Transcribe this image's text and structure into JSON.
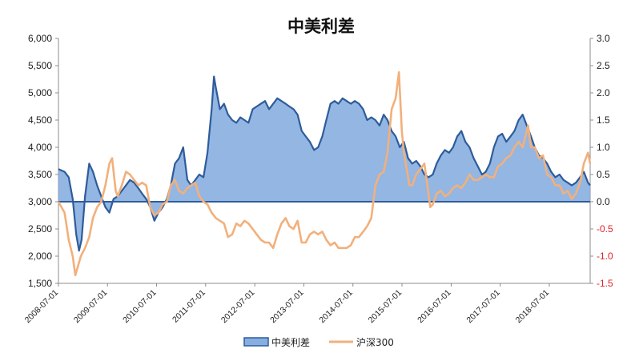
{
  "chart_data": {
    "type": "area",
    "title": "中美利差",
    "x_start": "2008-07-01",
    "x_end": "2019-05-01",
    "x_tick_labels": [
      "2008-07-01",
      "2009-07-01",
      "2010-07-01",
      "2011-07-01",
      "2012-07-01",
      "2013-07-01",
      "2014-07-01",
      "2015-07-01",
      "2016-07-01",
      "2017-07-01",
      "2018-07-01"
    ],
    "y_left": {
      "min": 1500,
      "max": 6000,
      "step": 500,
      "tick_labels": [
        "1,500",
        "2,000",
        "2,500",
        "3,000",
        "3,500",
        "4,000",
        "4,500",
        "5,000",
        "5,500",
        "6,000"
      ]
    },
    "y_right": {
      "min": -1.5,
      "max": 3.0,
      "step": 0.5,
      "tick_labels": [
        "-1.5",
        "-1.0",
        "-0.5",
        "0.0",
        "0.5",
        "1.0",
        "1.5",
        "2.0",
        "2.5",
        "3.0"
      ]
    },
    "legend_position": "bottom",
    "series": [
      {
        "name": "中美利差",
        "axis": "right",
        "kind": "area",
        "color": "#2e5c9a",
        "fill": "#87aee0",
        "points": [
          [
            "2008-07-01",
            0.6
          ],
          [
            "2008-08-15",
            0.55
          ],
          [
            "2008-09-15",
            0.45
          ],
          [
            "2008-10-15",
            0.05
          ],
          [
            "2008-11-10",
            -0.6
          ],
          [
            "2008-12-01",
            -0.9
          ],
          [
            "2008-12-20",
            -0.7
          ],
          [
            "2009-01-15",
            0.1
          ],
          [
            "2009-02-15",
            0.7
          ],
          [
            "2009-03-15",
            0.55
          ],
          [
            "2009-04-15",
            0.3
          ],
          [
            "2009-05-15",
            0.1
          ],
          [
            "2009-06-15",
            -0.1
          ],
          [
            "2009-07-15",
            -0.2
          ],
          [
            "2009-08-15",
            0.05
          ],
          [
            "2009-09-15",
            0.1
          ],
          [
            "2009-10-15",
            0.2
          ],
          [
            "2009-11-15",
            0.3
          ],
          [
            "2009-12-15",
            0.4
          ],
          [
            "2010-01-15",
            0.35
          ],
          [
            "2010-02-15",
            0.25
          ],
          [
            "2010-03-15",
            0.15
          ],
          [
            "2010-04-15",
            0.05
          ],
          [
            "2010-05-15",
            -0.1
          ],
          [
            "2010-06-15",
            -0.35
          ],
          [
            "2010-07-15",
            -0.2
          ],
          [
            "2010-08-15",
            -0.1
          ],
          [
            "2010-09-15",
            0.05
          ],
          [
            "2010-10-15",
            0.3
          ],
          [
            "2010-11-15",
            0.7
          ],
          [
            "2010-12-15",
            0.8
          ],
          [
            "2011-01-15",
            1.0
          ],
          [
            "2011-02-15",
            0.4
          ],
          [
            "2011-03-15",
            0.3
          ],
          [
            "2011-04-15",
            0.4
          ],
          [
            "2011-05-15",
            0.5
          ],
          [
            "2011-06-15",
            0.45
          ],
          [
            "2011-07-15",
            0.9
          ],
          [
            "2011-08-15",
            1.7
          ],
          [
            "2011-09-01",
            2.3
          ],
          [
            "2011-09-15",
            2.1
          ],
          [
            "2011-10-15",
            1.7
          ],
          [
            "2011-11-15",
            1.8
          ],
          [
            "2011-12-15",
            1.6
          ],
          [
            "2012-01-15",
            1.5
          ],
          [
            "2012-02-15",
            1.45
          ],
          [
            "2012-03-15",
            1.55
          ],
          [
            "2012-04-15",
            1.5
          ],
          [
            "2012-05-15",
            1.45
          ],
          [
            "2012-06-15",
            1.7
          ],
          [
            "2012-07-15",
            1.75
          ],
          [
            "2012-08-15",
            1.8
          ],
          [
            "2012-09-15",
            1.85
          ],
          [
            "2012-10-15",
            1.7
          ],
          [
            "2012-11-15",
            1.8
          ],
          [
            "2012-12-15",
            1.9
          ],
          [
            "2013-01-15",
            1.85
          ],
          [
            "2013-02-15",
            1.8
          ],
          [
            "2013-03-15",
            1.75
          ],
          [
            "2013-04-15",
            1.7
          ],
          [
            "2013-05-15",
            1.6
          ],
          [
            "2013-06-15",
            1.3
          ],
          [
            "2013-07-15",
            1.2
          ],
          [
            "2013-08-15",
            1.1
          ],
          [
            "2013-09-15",
            0.95
          ],
          [
            "2013-10-15",
            1.0
          ],
          [
            "2013-11-15",
            1.2
          ],
          [
            "2013-12-15",
            1.5
          ],
          [
            "2014-01-15",
            1.8
          ],
          [
            "2014-02-15",
            1.85
          ],
          [
            "2014-03-15",
            1.8
          ],
          [
            "2014-04-15",
            1.9
          ],
          [
            "2014-05-15",
            1.85
          ],
          [
            "2014-06-15",
            1.8
          ],
          [
            "2014-07-15",
            1.85
          ],
          [
            "2014-08-15",
            1.8
          ],
          [
            "2014-09-15",
            1.7
          ],
          [
            "2014-10-15",
            1.5
          ],
          [
            "2014-11-15",
            1.55
          ],
          [
            "2014-12-15",
            1.5
          ],
          [
            "2015-01-15",
            1.4
          ],
          [
            "2015-02-15",
            1.6
          ],
          [
            "2015-03-15",
            1.5
          ],
          [
            "2015-04-15",
            1.3
          ],
          [
            "2015-05-15",
            1.2
          ],
          [
            "2015-06-15",
            1.0
          ],
          [
            "2015-07-15",
            1.1
          ],
          [
            "2015-08-15",
            0.8
          ],
          [
            "2015-09-15",
            0.7
          ],
          [
            "2015-10-15",
            0.75
          ],
          [
            "2015-11-15",
            0.65
          ],
          [
            "2015-12-15",
            0.5
          ],
          [
            "2016-01-15",
            0.45
          ],
          [
            "2016-02-15",
            0.5
          ],
          [
            "2016-03-15",
            0.7
          ],
          [
            "2016-04-15",
            0.85
          ],
          [
            "2016-05-15",
            0.95
          ],
          [
            "2016-06-15",
            0.9
          ],
          [
            "2016-07-15",
            1.0
          ],
          [
            "2016-08-15",
            1.2
          ],
          [
            "2016-09-15",
            1.3
          ],
          [
            "2016-10-15",
            1.1
          ],
          [
            "2016-11-15",
            1.0
          ],
          [
            "2016-12-15",
            0.8
          ],
          [
            "2017-01-15",
            0.65
          ],
          [
            "2017-02-15",
            0.5
          ],
          [
            "2017-03-15",
            0.55
          ],
          [
            "2017-04-15",
            0.7
          ],
          [
            "2017-05-15",
            1.0
          ],
          [
            "2017-06-15",
            1.2
          ],
          [
            "2017-07-15",
            1.25
          ],
          [
            "2017-08-15",
            1.1
          ],
          [
            "2017-09-15",
            1.2
          ],
          [
            "2017-10-15",
            1.3
          ],
          [
            "2017-11-15",
            1.5
          ],
          [
            "2017-12-15",
            1.6
          ],
          [
            "2018-01-15",
            1.4
          ],
          [
            "2018-02-15",
            1.2
          ],
          [
            "2018-03-15",
            1.0
          ],
          [
            "2018-04-15",
            0.85
          ],
          [
            "2018-05-15",
            0.8
          ],
          [
            "2018-06-15",
            0.7
          ],
          [
            "2018-07-15",
            0.55
          ],
          [
            "2018-08-15",
            0.45
          ],
          [
            "2018-09-15",
            0.5
          ],
          [
            "2018-10-15",
            0.4
          ],
          [
            "2018-11-15",
            0.35
          ],
          [
            "2018-12-15",
            0.3
          ],
          [
            "2019-01-15",
            0.35
          ],
          [
            "2019-02-15",
            0.45
          ],
          [
            "2019-03-15",
            0.55
          ],
          [
            "2019-04-15",
            0.35
          ],
          [
            "2019-05-01",
            0.3
          ]
        ]
      },
      {
        "name": "沪深300",
        "axis": "left",
        "kind": "line",
        "color": "#f2b07c",
        "points": [
          [
            "2008-07-01",
            3000
          ],
          [
            "2008-08-15",
            2800
          ],
          [
            "2008-09-15",
            2300
          ],
          [
            "2008-10-15",
            2000
          ],
          [
            "2008-11-04",
            1650
          ],
          [
            "2008-12-15",
            2000
          ],
          [
            "2009-01-15",
            2150
          ],
          [
            "2009-02-15",
            2350
          ],
          [
            "2009-03-15",
            2700
          ],
          [
            "2009-04-15",
            2900
          ],
          [
            "2009-05-15",
            3000
          ],
          [
            "2009-06-15",
            3300
          ],
          [
            "2009-07-15",
            3700
          ],
          [
            "2009-08-04",
            3800
          ],
          [
            "2009-08-31",
            3200
          ],
          [
            "2009-09-15",
            3100
          ],
          [
            "2009-10-15",
            3300
          ],
          [
            "2009-11-15",
            3550
          ],
          [
            "2009-12-15",
            3500
          ],
          [
            "2010-01-15",
            3400
          ],
          [
            "2010-02-15",
            3300
          ],
          [
            "2010-03-15",
            3350
          ],
          [
            "2010-04-15",
            3300
          ],
          [
            "2010-05-15",
            2900
          ],
          [
            "2010-06-15",
            2750
          ],
          [
            "2010-07-15",
            2800
          ],
          [
            "2010-08-15",
            2950
          ],
          [
            "2010-09-15",
            3000
          ],
          [
            "2010-10-15",
            3300
          ],
          [
            "2010-11-15",
            3400
          ],
          [
            "2010-12-15",
            3200
          ],
          [
            "2011-01-15",
            3150
          ],
          [
            "2011-02-15",
            3250
          ],
          [
            "2011-03-15",
            3300
          ],
          [
            "2011-04-15",
            3350
          ],
          [
            "2011-05-15",
            3100
          ],
          [
            "2011-06-15",
            3000
          ],
          [
            "2011-07-15",
            2950
          ],
          [
            "2011-08-15",
            2800
          ],
          [
            "2011-09-15",
            2700
          ],
          [
            "2011-10-15",
            2650
          ],
          [
            "2011-11-15",
            2600
          ],
          [
            "2011-12-15",
            2350
          ],
          [
            "2012-01-15",
            2400
          ],
          [
            "2012-02-15",
            2600
          ],
          [
            "2012-03-15",
            2550
          ],
          [
            "2012-04-15",
            2650
          ],
          [
            "2012-05-15",
            2600
          ],
          [
            "2012-06-15",
            2500
          ],
          [
            "2012-07-15",
            2400
          ],
          [
            "2012-08-15",
            2300
          ],
          [
            "2012-09-15",
            2250
          ],
          [
            "2012-10-15",
            2250
          ],
          [
            "2012-11-15",
            2150
          ],
          [
            "2012-12-15",
            2400
          ],
          [
            "2013-01-15",
            2600
          ],
          [
            "2013-02-15",
            2700
          ],
          [
            "2013-03-15",
            2550
          ],
          [
            "2013-04-15",
            2500
          ],
          [
            "2013-05-15",
            2650
          ],
          [
            "2013-06-15",
            2250
          ],
          [
            "2013-07-15",
            2250
          ],
          [
            "2013-08-15",
            2400
          ],
          [
            "2013-09-15",
            2450
          ],
          [
            "2013-10-15",
            2400
          ],
          [
            "2013-11-15",
            2450
          ],
          [
            "2013-12-15",
            2300
          ],
          [
            "2014-01-15",
            2200
          ],
          [
            "2014-02-15",
            2250
          ],
          [
            "2014-03-15",
            2150
          ],
          [
            "2014-04-15",
            2150
          ],
          [
            "2014-05-15",
            2150
          ],
          [
            "2014-06-15",
            2200
          ],
          [
            "2014-07-15",
            2350
          ],
          [
            "2014-08-15",
            2350
          ],
          [
            "2014-09-15",
            2450
          ],
          [
            "2014-10-15",
            2550
          ],
          [
            "2014-11-15",
            2700
          ],
          [
            "2014-12-15",
            3300
          ],
          [
            "2015-01-15",
            3500
          ],
          [
            "2015-02-15",
            3550
          ],
          [
            "2015-03-15",
            3900
          ],
          [
            "2015-04-15",
            4700
          ],
          [
            "2015-05-15",
            4900
          ],
          [
            "2015-06-08",
            5380
          ],
          [
            "2015-06-30",
            4300
          ],
          [
            "2015-07-15",
            3900
          ],
          [
            "2015-08-26",
            3300
          ],
          [
            "2015-09-15",
            3300
          ],
          [
            "2015-10-15",
            3500
          ],
          [
            "2015-11-15",
            3600
          ],
          [
            "2015-12-15",
            3700
          ],
          [
            "2016-01-28",
            2900
          ],
          [
            "2016-02-15",
            2950
          ],
          [
            "2016-03-15",
            3150
          ],
          [
            "2016-04-15",
            3200
          ],
          [
            "2016-05-15",
            3100
          ],
          [
            "2016-06-15",
            3150
          ],
          [
            "2016-07-15",
            3250
          ],
          [
            "2016-08-15",
            3300
          ],
          [
            "2016-09-15",
            3250
          ],
          [
            "2016-10-15",
            3350
          ],
          [
            "2016-11-15",
            3500
          ],
          [
            "2016-12-15",
            3400
          ],
          [
            "2017-01-15",
            3400
          ],
          [
            "2017-02-15",
            3450
          ],
          [
            "2017-03-15",
            3500
          ],
          [
            "2017-04-15",
            3450
          ],
          [
            "2017-05-15",
            3450
          ],
          [
            "2017-06-15",
            3650
          ],
          [
            "2017-07-15",
            3700
          ],
          [
            "2017-08-15",
            3800
          ],
          [
            "2017-09-15",
            3850
          ],
          [
            "2017-10-15",
            4000
          ],
          [
            "2017-11-15",
            4100
          ],
          [
            "2017-12-15",
            4000
          ],
          [
            "2018-01-24",
            4400
          ],
          [
            "2018-02-15",
            4000
          ],
          [
            "2018-03-15",
            4000
          ],
          [
            "2018-04-15",
            3800
          ],
          [
            "2018-05-15",
            3850
          ],
          [
            "2018-06-15",
            3500
          ],
          [
            "2018-07-15",
            3450
          ],
          [
            "2018-08-15",
            3300
          ],
          [
            "2018-09-15",
            3300
          ],
          [
            "2018-10-15",
            3150
          ],
          [
            "2018-11-15",
            3200
          ],
          [
            "2018-12-15",
            3050
          ],
          [
            "2019-01-15",
            3150
          ],
          [
            "2019-02-15",
            3350
          ],
          [
            "2019-03-15",
            3700
          ],
          [
            "2019-04-15",
            3900
          ],
          [
            "2019-05-01",
            3700
          ]
        ]
      }
    ]
  }
}
